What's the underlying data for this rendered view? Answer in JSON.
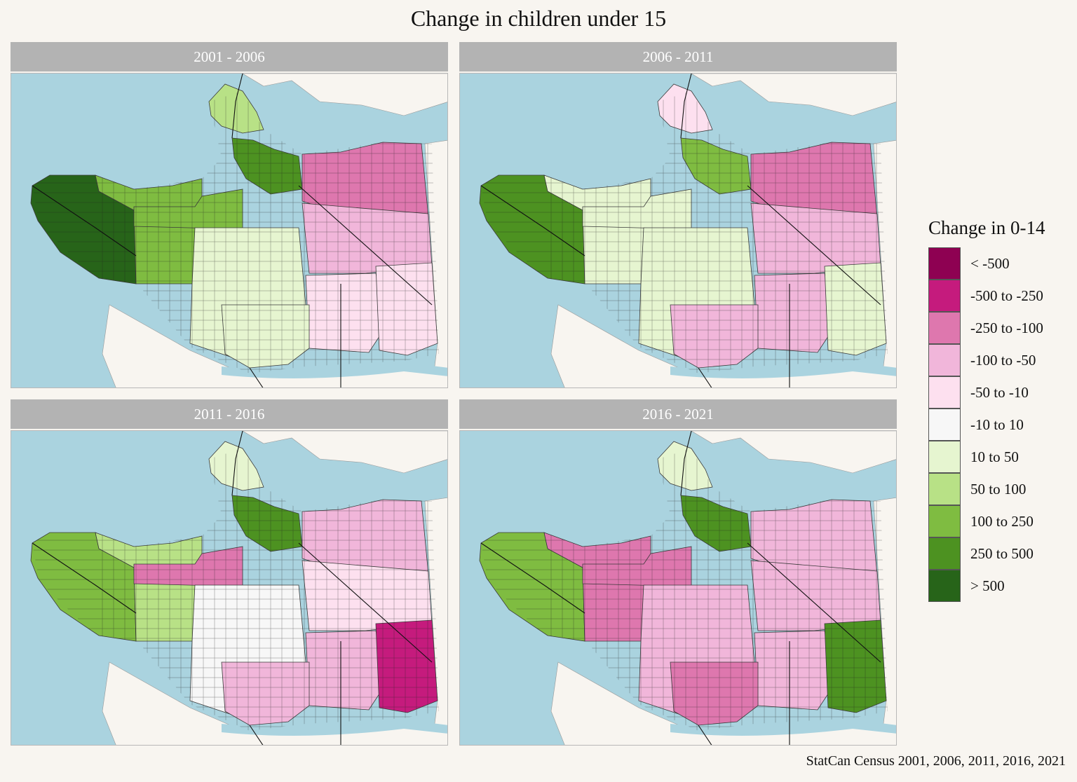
{
  "title": "Change in children under 15",
  "caption": "StatCan Census 2001, 2006, 2011, 2016, 2021",
  "legend": {
    "title": "Change in 0-14",
    "items": [
      {
        "label": "< -500",
        "color": "#8e0152"
      },
      {
        "label": "-500 to -250",
        "color": "#c51b7d"
      },
      {
        "label": "-250 to -100",
        "color": "#de77ae"
      },
      {
        "label": "-100 to -50",
        "color": "#f1b6da"
      },
      {
        "label": "-50 to -10",
        "color": "#fde0ef"
      },
      {
        "label": "-10 to 10",
        "color": "#f7f7f7"
      },
      {
        "label": "10 to 50",
        "color": "#e6f5d0"
      },
      {
        "label": "50 to 100",
        "color": "#b8e186"
      },
      {
        "label": "100 to 250",
        "color": "#7fbc41"
      },
      {
        "label": "250 to 500",
        "color": "#4d9221"
      },
      {
        "label": "> 500",
        "color": "#276419"
      }
    ]
  },
  "map_colors": {
    "water": "#aad3df",
    "land": "#f8f5f0",
    "roads": "#222222"
  },
  "panels": [
    {
      "period": "2001 - 2006",
      "regions": {
        "west": 10,
        "west_mid": 8,
        "downtown": 9,
        "stanley_park": 7,
        "kits": 8,
        "central": 6,
        "east_north": 2,
        "east": 3,
        "east_south": 4,
        "south": 6,
        "southeast": 4
      }
    },
    {
      "period": "2006 - 2011",
      "regions": {
        "west": 9,
        "west_mid": 6,
        "downtown": 8,
        "stanley_park": 4,
        "kits": 6,
        "central": 6,
        "east_north": 2,
        "east": 3,
        "east_south": 3,
        "south": 3,
        "southeast": 6
      }
    },
    {
      "period": "2011 - 2016",
      "regions": {
        "west": 8,
        "west_mid": 7,
        "downtown": 9,
        "stanley_park": 6,
        "kits": 2,
        "central": 5,
        "east_north": 3,
        "east": 4,
        "east_south": 3,
        "south": 3,
        "southeast": 1
      }
    },
    {
      "period": "2016 - 2021",
      "regions": {
        "west": 8,
        "west_mid": 2,
        "downtown": 9,
        "stanley_park": 6,
        "kits": 2,
        "central": 3,
        "east_north": 3,
        "east": 3,
        "east_south": 3,
        "south": 2,
        "southeast": 9
      }
    }
  ]
}
